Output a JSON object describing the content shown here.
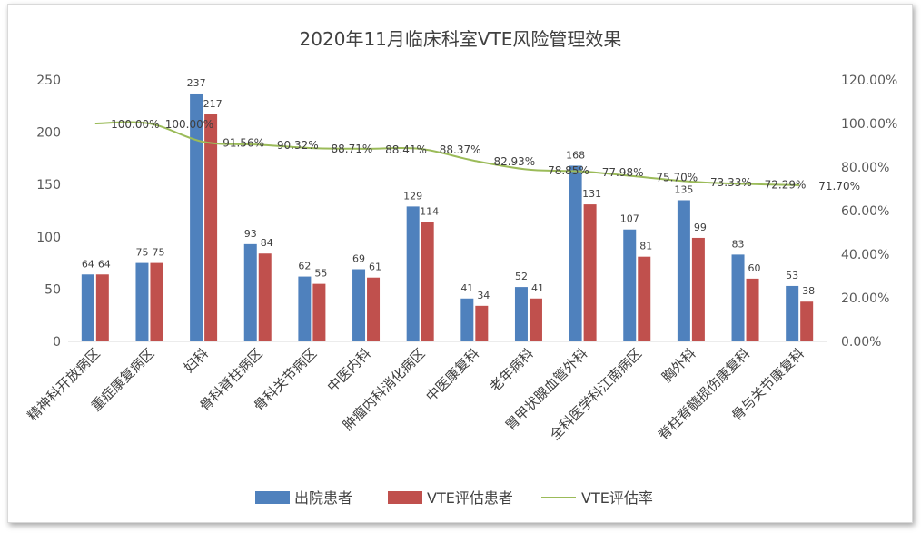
{
  "chart_data": {
    "type": "bar",
    "title": "2020年11月临床科室VTE风险管理效果",
    "categories": [
      "精神科开放病区",
      "重症康复病区",
      "妇科",
      "骨科脊柱病区",
      "骨科关节病区",
      "中医内科",
      "肿瘤内科消化病区",
      "中医康复科",
      "老年病科",
      "胃甲状腺血管外科",
      "全科医学科江南病区",
      "胸外科",
      "脊柱脊髓损伤康复科",
      "骨与关节康复科"
    ],
    "series": [
      {
        "name": "出院患者",
        "type": "bar",
        "axis": "left",
        "color": "#4f81bd",
        "values": [
          64,
          75,
          237,
          93,
          62,
          69,
          129,
          41,
          52,
          168,
          107,
          135,
          83,
          53
        ],
        "labels": [
          "64",
          "75",
          "237",
          "93",
          "62",
          "69",
          "129",
          "41",
          "52",
          "168",
          "107",
          "135",
          "83",
          "53"
        ]
      },
      {
        "name": "VTE评估患者",
        "type": "bar",
        "axis": "left",
        "color": "#c0504d",
        "values": [
          64,
          75,
          217,
          84,
          55,
          61,
          114,
          34,
          41,
          131,
          81,
          99,
          60,
          38
        ],
        "labels": [
          "64",
          "75",
          "217",
          "84",
          "55",
          "61",
          "114",
          "34",
          "41",
          "131",
          "81",
          "99",
          "60",
          "38"
        ]
      },
      {
        "name": "VTE评估率",
        "type": "line",
        "axis": "right",
        "color": "#9bbb59",
        "values": [
          100.0,
          100.0,
          91.56,
          90.32,
          88.71,
          88.41,
          88.37,
          82.93,
          78.85,
          77.98,
          75.7,
          73.33,
          72.29,
          71.7
        ],
        "labels": [
          "100.00%",
          "100.00%",
          "91.56%",
          "90.32%",
          "88.71%",
          "88.41%",
          "88.37%",
          "82.93%",
          "78.85%",
          "77.98%",
          "75.70%",
          "73.33%",
          "72.29%",
          "71.70%"
        ]
      }
    ],
    "ylim_left": [
      0,
      250
    ],
    "yticks_left": [
      "0",
      "50",
      "100",
      "150",
      "200",
      "250"
    ],
    "ylim_right": [
      0,
      120
    ],
    "yticks_right": [
      "0.00%",
      "20.00%",
      "40.00%",
      "60.00%",
      "80.00%",
      "100.00%",
      "120.00%"
    ],
    "grid": false,
    "legend_position": "bottom"
  }
}
